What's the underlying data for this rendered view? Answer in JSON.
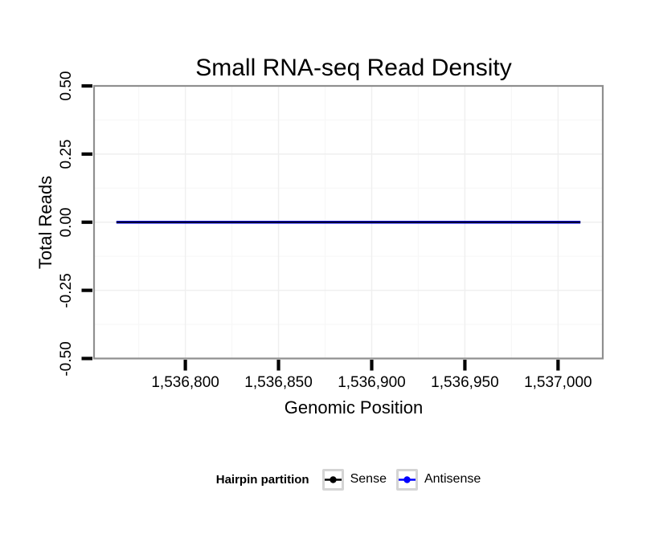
{
  "chart_data": {
    "type": "line",
    "title": "Small RNA-seq Read Density",
    "x_axis": {
      "label": "Genomic Position",
      "domain": [
        1536751,
        1537024
      ],
      "ticks": [
        {
          "v": 1536800,
          "label": "1,536,800"
        },
        {
          "v": 1536850,
          "label": "1,536,850"
        },
        {
          "v": 1536900,
          "label": "1,536,900"
        },
        {
          "v": 1536950,
          "label": "1,536,950"
        },
        {
          "v": 1537000,
          "label": "1,537,000"
        }
      ],
      "minor": [
        1536775,
        1536825,
        1536875,
        1536925,
        1536975
      ]
    },
    "y_axis": {
      "label": "Total Reads",
      "domain": [
        -0.5,
        0.5
      ],
      "ticks": [
        {
          "v": 0.5,
          "label": "0.50"
        },
        {
          "v": 0.25,
          "label": "0.25"
        },
        {
          "v": 0,
          "label": "0.00"
        },
        {
          "v": -0.25,
          "label": "-0.25"
        },
        {
          "v": -0.5,
          "label": "-0.50"
        }
      ],
      "minor": [
        0.375,
        0.125,
        -0.125,
        -0.375
      ]
    },
    "series": [
      {
        "name": "Sense",
        "color": "#000000",
        "x": [
          1536763,
          1537012
        ],
        "y": [
          0,
          0
        ]
      },
      {
        "name": "Antisense",
        "color": "#0000FF",
        "x": [
          1536763,
          1537012
        ],
        "y": [
          0,
          0
        ]
      }
    ],
    "legend": {
      "title": "Hairpin partition",
      "position": "bottom",
      "entries": [
        {
          "label": "Sense",
          "color": "#000000"
        },
        {
          "label": "Antisense",
          "color": "#0000FF"
        }
      ]
    },
    "style": {
      "panel_border": "#8F8F8F",
      "grid_major": "#EFEFEF",
      "grid_minor": "#F7F7F7",
      "tick_color": "#000000",
      "grid": "on"
    }
  }
}
